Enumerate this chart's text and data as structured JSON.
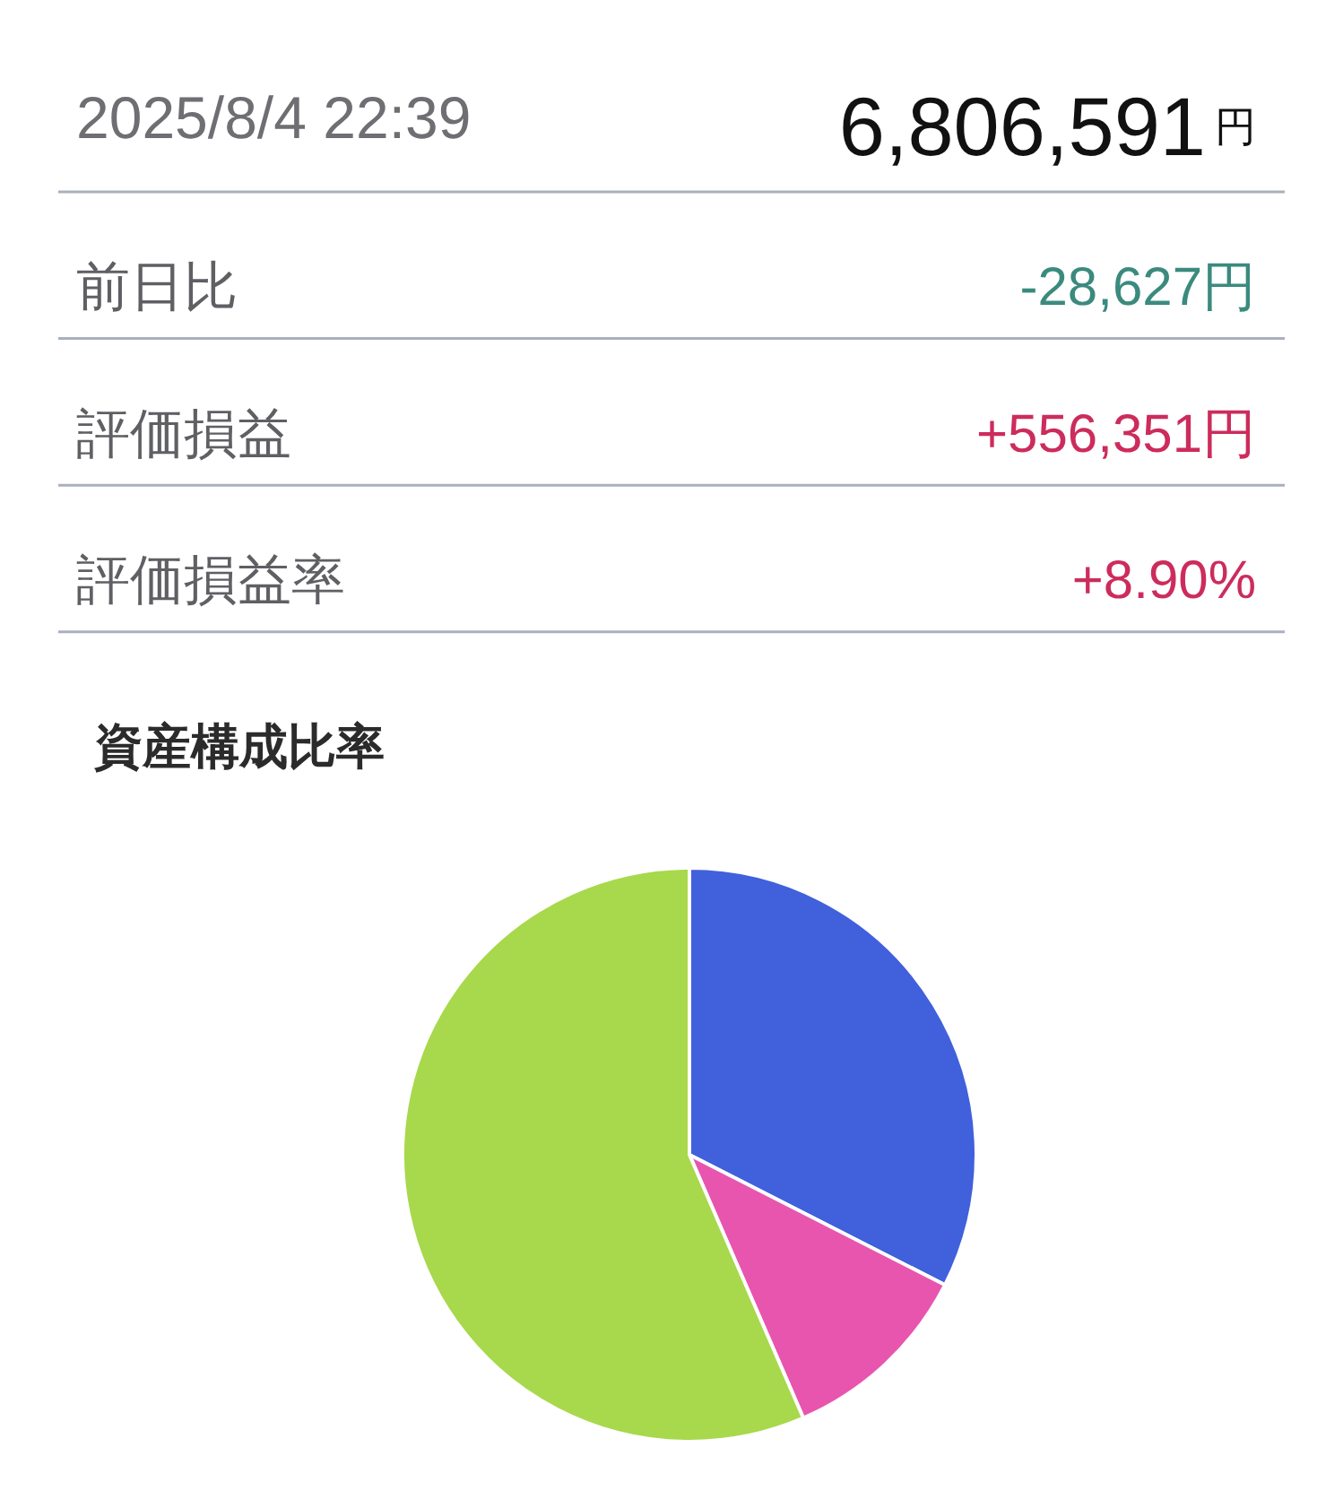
{
  "chart_data": [
    {
      "type": "other",
      "annotations": [
        "2025/8/4 22:39",
        "6,806,591円",
        "前日比",
        "-28,627円",
        "評価損益",
        "+556,351円",
        "評価損益率",
        "+8.90%"
      ]
    },
    {
      "type": "pie",
      "title": "資産構成比率",
      "categories": [
        null,
        null,
        null
      ],
      "values": [
        32.5,
        11.0,
        56.5
      ],
      "colors": [
        "#4160dc",
        "#e855ae",
        "#a8d84c"
      ]
    }
  ]
}
